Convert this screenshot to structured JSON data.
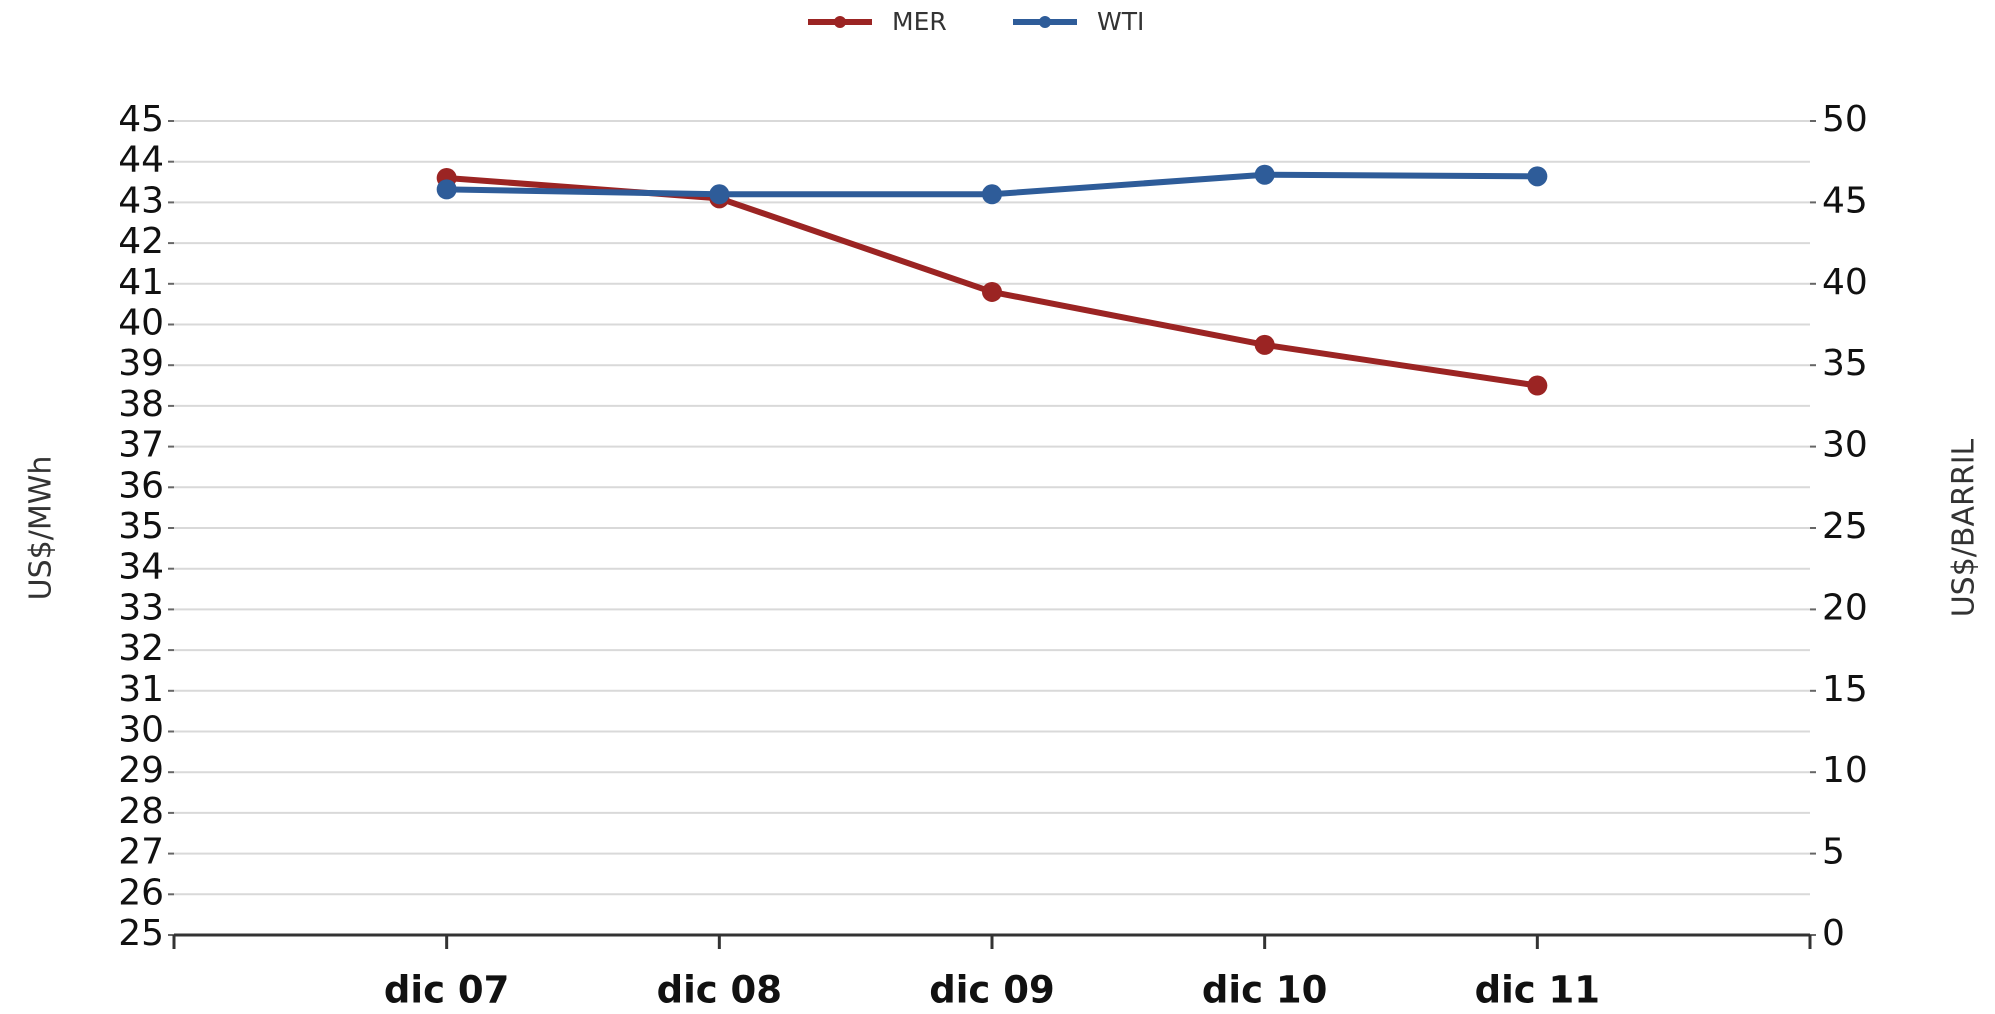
{
  "chart_data": {
    "type": "line",
    "categories": [
      "dic 07",
      "dic 08",
      "dic 09",
      "dic 10",
      "dic 11"
    ],
    "series": [
      {
        "name": "MER",
        "color": "#9b2423",
        "values": [
          43.6,
          43.1,
          40.8,
          39.5,
          38.5
        ]
      },
      {
        "name": "WTI",
        "color": "#2e5c99",
        "axis": "y2",
        "values": [
          45.8,
          45.5,
          45.5,
          46.7,
          46.6
        ]
      }
    ],
    "ylabel": "US$/MWh",
    "y2label": "US$/BARRIL",
    "ylim": [
      25,
      45
    ],
    "yticks": [
      25,
      26,
      27,
      28,
      29,
      30,
      31,
      32,
      33,
      34,
      35,
      36,
      37,
      38,
      39,
      40,
      41,
      42,
      43,
      44,
      45
    ],
    "y2lim": [
      0,
      50
    ],
    "y2ticks": [
      0,
      5,
      10,
      15,
      20,
      25,
      30,
      35,
      40,
      45,
      50
    ],
    "grid": true,
    "legend": "top"
  }
}
